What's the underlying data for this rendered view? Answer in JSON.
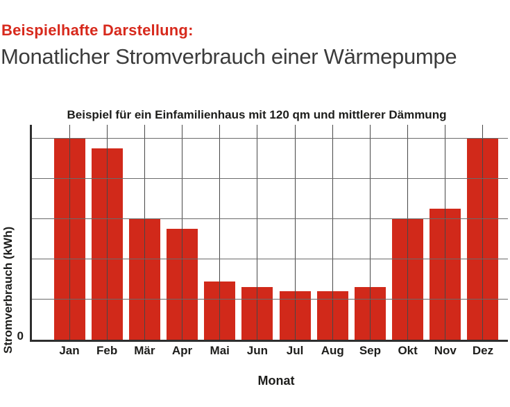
{
  "page": {
    "background": "#ffffff"
  },
  "header": {
    "eyebrow": "Beispielhafte Darstellung:",
    "title": "Monatlicher Stromverbrauch einer Wärmepumpe"
  },
  "colors": {
    "eyebrow_red": "#d7291c",
    "bar_red": "#d1291a",
    "title_gray": "#3b3b3b",
    "text_dark": "#1d1d1b",
    "axis_dark": "#2e2e2e",
    "grid_vertical": "#474747",
    "grid_horizontal": "#6a6a6a"
  },
  "chart_data": {
    "type": "bar",
    "title": "Beispiel für ein Einfamilienhaus mit 120 qm und mittlerer Dämmung",
    "xlabel": "Monat",
    "ylabel": "Stromverbrauch (kWh)",
    "categories": [
      "Jan",
      "Feb",
      "Mär",
      "Apr",
      "Mai",
      "Jun",
      "Jul",
      "Aug",
      "Sep",
      "Okt",
      "Nov",
      "Dez"
    ],
    "values": [
      5,
      4.75,
      3,
      2.75,
      1.45,
      1.3,
      1.2,
      1.2,
      1.3,
      3,
      3.25,
      5
    ],
    "values_note": "y-axis has no numeric tick labels except 0; values estimated in gridline units (1 unit = one horizontal gridline spacing)",
    "y_tick_labels": [
      "0"
    ],
    "ylim": [
      0,
      5.35
    ],
    "grid": "horizontal gridlines every 1 unit; vertical gridline through each bar center; gridlines drawn over the bars",
    "legend": "none",
    "bar_color": "#d1291a"
  }
}
